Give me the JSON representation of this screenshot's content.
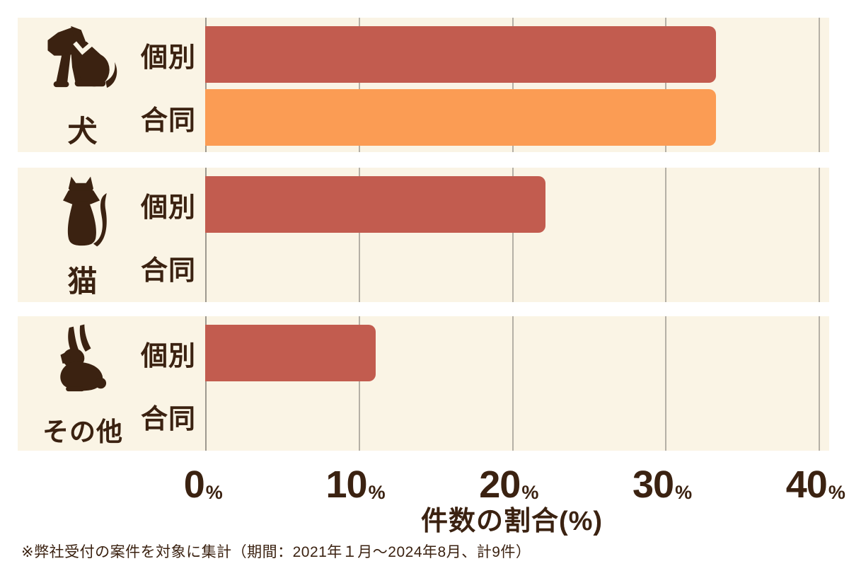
{
  "chart_data": {
    "type": "bar",
    "orientation": "horizontal",
    "title": "",
    "xlabel": "件数の割合(%)",
    "ylabel": "",
    "xlim": [
      0,
      40
    ],
    "x_ticks": [
      0,
      10,
      20,
      30,
      40
    ],
    "x_tick_suffix": "%",
    "grid": "vertical-lines-on",
    "legend": "none (labels per row)",
    "categories": [
      "犬",
      "猫",
      "その他"
    ],
    "series_labels": [
      "個別",
      "合同"
    ],
    "groups": [
      {
        "name": "犬",
        "icon": "dog-icon",
        "bars": [
          {
            "label": "個別",
            "value": 33.3,
            "color": "#c25c4f"
          },
          {
            "label": "合同",
            "value": 33.3,
            "color": "#fb9c54"
          }
        ]
      },
      {
        "name": "猫",
        "icon": "cat-icon",
        "bars": [
          {
            "label": "個別",
            "value": 22.2,
            "color": "#c25c4f"
          },
          {
            "label": "合同",
            "value": 0,
            "color": "#fb9c54"
          }
        ]
      },
      {
        "name": "その他",
        "icon": "rabbit-icon",
        "bars": [
          {
            "label": "個別",
            "value": 11.1,
            "color": "#c25c4f"
          },
          {
            "label": "合同",
            "value": 0,
            "color": "#fb9c54"
          }
        ]
      }
    ],
    "note": "※弊社受付の案件を対象に集計（期間：2021年１月～2024年8月、計9件）"
  },
  "colors": {
    "page_bg": "#ffffff",
    "panel_bg": "#faf4e5",
    "bar_red": "#c25c4f",
    "bar_orange": "#fb9c54",
    "text_brown": "#3b2211",
    "gridline": "#b5b0a6",
    "axis_line": "#9e998f"
  }
}
